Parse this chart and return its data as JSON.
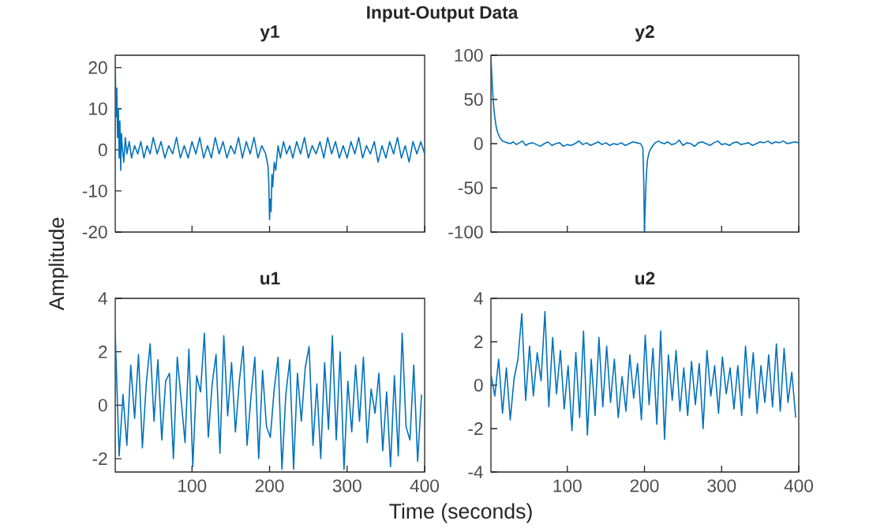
{
  "chart_data": [
    {
      "type": "line",
      "title": "y1",
      "ylabel": "Amplitude",
      "annotations": [
        "Input-Output Data"
      ],
      "xlim": [
        1,
        400
      ],
      "ylim": [
        -20,
        23
      ],
      "xticks": [
        100,
        200,
        300,
        400
      ],
      "yticks": [
        -20,
        -10,
        0,
        10,
        20
      ],
      "tick_labels": "y",
      "x": [
        1,
        2,
        3,
        4,
        5,
        6,
        7,
        8,
        9,
        10,
        12,
        14,
        16,
        19,
        22,
        26,
        30,
        34,
        38,
        42,
        46,
        50,
        55,
        60,
        65,
        70,
        75,
        80,
        85,
        90,
        95,
        100,
        105,
        110,
        115,
        120,
        125,
        130,
        135,
        140,
        145,
        150,
        155,
        160,
        165,
        170,
        175,
        180,
        185,
        190,
        195,
        198,
        199,
        200,
        201,
        202,
        203,
        204,
        206,
        208,
        211,
        214,
        218,
        222,
        226,
        230,
        235,
        240,
        245,
        250,
        255,
        260,
        265,
        270,
        275,
        280,
        285,
        290,
        295,
        300,
        305,
        310,
        315,
        320,
        325,
        330,
        335,
        340,
        345,
        350,
        355,
        360,
        365,
        370,
        375,
        380,
        385,
        390,
        395,
        400
      ],
      "series": [
        {
          "color": "#0072bd",
          "values": [
            22,
            8,
            15,
            3,
            10,
            -2,
            7,
            -5,
            4,
            1,
            -3,
            3,
            -1,
            2,
            -2,
            1,
            -1,
            2,
            -2,
            1,
            -1,
            3,
            -1,
            2,
            -2,
            1,
            -1,
            3,
            -2,
            1,
            -2,
            2,
            -1,
            3,
            -2,
            1,
            -2,
            3,
            -1,
            2,
            -2,
            1,
            -1,
            3,
            -2,
            2,
            -1,
            3,
            -2,
            1,
            -1,
            -4,
            -8,
            -17,
            -12,
            -15,
            -6,
            -9,
            -3,
            -5,
            1,
            -2,
            2,
            -1,
            1,
            -2,
            2,
            -1,
            3,
            -2,
            1,
            -1,
            2,
            -2,
            3,
            -1,
            2,
            -2,
            1,
            -2,
            2,
            -1,
            3,
            -2,
            1,
            -1,
            2,
            -3,
            1,
            -2,
            2,
            -1,
            3,
            -2,
            1,
            -3,
            2,
            -1,
            2,
            -1
          ]
        }
      ]
    },
    {
      "type": "line",
      "title": "y2",
      "xlim": [
        1,
        400
      ],
      "ylim": [
        -100,
        100
      ],
      "xticks": [
        100,
        200,
        300,
        400
      ],
      "yticks": [
        -100,
        -50,
        0,
        50,
        100
      ],
      "tick_labels": "y",
      "x": [
        1,
        2,
        3,
        4,
        5,
        6,
        7,
        8,
        9,
        10,
        12,
        14,
        16,
        19,
        22,
        26,
        30,
        34,
        38,
        42,
        46,
        50,
        55,
        60,
        65,
        70,
        75,
        80,
        85,
        90,
        95,
        100,
        105,
        110,
        115,
        120,
        125,
        130,
        135,
        140,
        145,
        150,
        155,
        160,
        165,
        170,
        175,
        180,
        185,
        190,
        195,
        198,
        199,
        200,
        201,
        202,
        203,
        204,
        206,
        208,
        211,
        214,
        218,
        222,
        226,
        230,
        235,
        240,
        245,
        250,
        255,
        260,
        265,
        270,
        275,
        280,
        285,
        290,
        295,
        300,
        305,
        310,
        315,
        320,
        325,
        330,
        335,
        340,
        345,
        350,
        355,
        360,
        365,
        370,
        375,
        380,
        385,
        390,
        395,
        400
      ],
      "series": [
        {
          "color": "#0072bd",
          "values": [
            98,
            80,
            62,
            48,
            38,
            30,
            24,
            18,
            15,
            12,
            8,
            5,
            3,
            2,
            1,
            0,
            2,
            -1,
            1,
            3,
            -2,
            0,
            1,
            -1,
            -3,
            0,
            2,
            -2,
            0,
            1,
            -3,
            -1,
            -2,
            0,
            3,
            -1,
            1,
            -2,
            0,
            2,
            -1,
            1,
            -2,
            0,
            -1,
            1,
            -2,
            0,
            2,
            1,
            0,
            -5,
            -40,
            -100,
            -70,
            -45,
            -28,
            -18,
            -10,
            -6,
            -2,
            1,
            3,
            1,
            0,
            2,
            -1,
            0,
            4,
            -2,
            1,
            0,
            -3,
            1,
            2,
            0,
            -2,
            1,
            3,
            -1,
            0,
            -2,
            1,
            2,
            -1,
            0,
            1,
            -2,
            0,
            2,
            1,
            3,
            0,
            2,
            1,
            3,
            0,
            1,
            2,
            1
          ]
        }
      ]
    },
    {
      "type": "line",
      "title": "u1",
      "xlabel": "Time (seconds)",
      "xlim": [
        1,
        400
      ],
      "ylim": [
        -2.5,
        4
      ],
      "xticks": [
        100,
        200,
        300,
        400
      ],
      "yticks": [
        -2,
        0,
        2,
        4
      ],
      "x": [
        1,
        6,
        11,
        16,
        21,
        26,
        31,
        36,
        41,
        46,
        51,
        56,
        61,
        66,
        71,
        76,
        81,
        86,
        91,
        96,
        101,
        106,
        111,
        116,
        121,
        126,
        131,
        136,
        141,
        146,
        151,
        156,
        161,
        166,
        171,
        176,
        181,
        186,
        191,
        196,
        201,
        206,
        211,
        216,
        221,
        226,
        231,
        236,
        241,
        246,
        251,
        256,
        261,
        266,
        271,
        276,
        281,
        286,
        291,
        296,
        301,
        306,
        311,
        316,
        321,
        326,
        331,
        336,
        341,
        346,
        351,
        356,
        361,
        366,
        371,
        376,
        381,
        386,
        391,
        396
      ],
      "series": [
        {
          "color": "#0072bd",
          "values": [
            2.7,
            -1.9,
            0.4,
            -1.5,
            1.5,
            -0.5,
            1.9,
            -1.6,
            0.8,
            2.3,
            -0.6,
            1.7,
            -1.3,
            0.9,
            1.2,
            -2.0,
            1.8,
            0.2,
            -1.4,
            2.1,
            -2.3,
            1.1,
            0.5,
            2.7,
            -1.2,
            0.8,
            1.9,
            -1.8,
            2.6,
            -0.4,
            1.6,
            -1.0,
            0.9,
            2.2,
            -1.5,
            0.3,
            1.8,
            -2.0,
            1.3,
            -0.8,
            -1.2,
            0.6,
            1.8,
            -2.4,
            0.4,
            1.7,
            -2.4,
            1.2,
            -0.6,
            1.4,
            2.2,
            -1.5,
            0.8,
            -2.0,
            1.6,
            -0.9,
            2.6,
            -1.3,
            2.0,
            -2.4,
            0.9,
            -1.0,
            1.5,
            -0.6,
            1.8,
            -1.4,
            0.6,
            -0.3,
            1.2,
            -1.7,
            0.5,
            -2.3,
            1.1,
            -1.9,
            2.7,
            -0.8,
            -1.3,
            1.5,
            -2.1,
            0.4
          ]
        }
      ]
    },
    {
      "type": "line",
      "title": "u2",
      "xlim": [
        1,
        400
      ],
      "ylim": [
        -4,
        4
      ],
      "xticks": [
        100,
        200,
        300,
        400
      ],
      "yticks": [
        -4,
        -2,
        0,
        2,
        4
      ],
      "x": [
        1,
        6,
        11,
        16,
        21,
        26,
        31,
        36,
        41,
        46,
        51,
        56,
        61,
        66,
        71,
        76,
        81,
        86,
        91,
        96,
        101,
        106,
        111,
        116,
        121,
        126,
        131,
        136,
        141,
        146,
        151,
        156,
        161,
        166,
        171,
        176,
        181,
        186,
        191,
        196,
        201,
        206,
        211,
        216,
        221,
        226,
        231,
        236,
        241,
        246,
        251,
        256,
        261,
        266,
        271,
        276,
        281,
        286,
        291,
        296,
        301,
        306,
        311,
        316,
        321,
        326,
        331,
        336,
        341,
        346,
        351,
        356,
        361,
        366,
        371,
        376,
        381,
        386,
        391,
        396
      ],
      "series": [
        {
          "color": "#0072bd",
          "values": [
            0.5,
            -0.5,
            1.2,
            -1.3,
            0.8,
            -1.6,
            0.3,
            1.2,
            3.3,
            -0.7,
            1.8,
            -0.5,
            1.5,
            0.2,
            3.4,
            -1.0,
            2.2,
            -0.4,
            1.6,
            -1.1,
            0.9,
            -2.1,
            1.5,
            -1.5,
            2.5,
            -2.3,
            1.2,
            -1.4,
            2.2,
            -1.0,
            1.8,
            -0.8,
            1.2,
            -1.5,
            0.4,
            -1.2,
            1.4,
            -0.6,
            1.0,
            -1.6,
            2.3,
            -0.9,
            1.7,
            -1.8,
            2.5,
            -2.5,
            1.4,
            -0.7,
            1.6,
            -1.2,
            0.8,
            -1.4,
            1.1,
            -0.9,
            1.0,
            -2.0,
            1.6,
            -0.5,
            0.9,
            -1.3,
            1.3,
            -0.4,
            0.8,
            -1.1,
            0.9,
            -1.4,
            1.8,
            -0.6,
            1.5,
            -1.3,
            0.9,
            -0.8,
            1.4,
            -1.0,
            1.9,
            -1.2,
            1.7,
            -0.8,
            0.6,
            -1.5
          ]
        }
      ]
    }
  ]
}
